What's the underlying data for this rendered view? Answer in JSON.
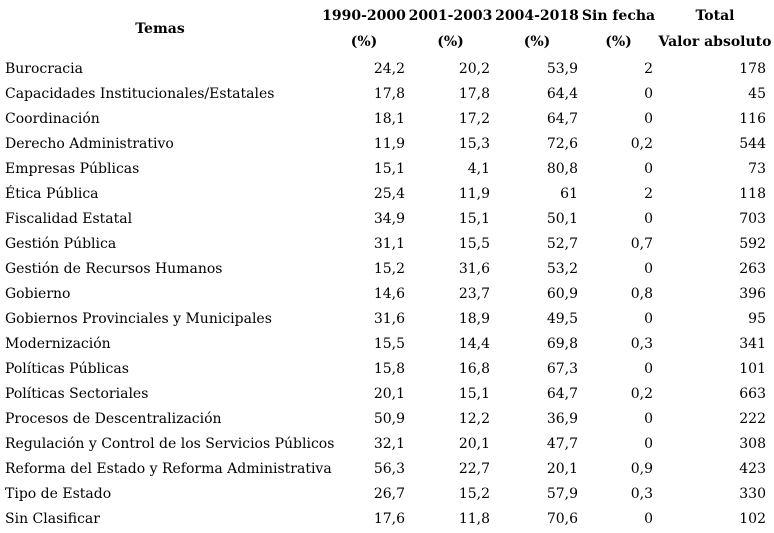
{
  "chart_data": {
    "type": "table",
    "columns": [
      {
        "label": "Temas",
        "sublabel": ""
      },
      {
        "label": "1990-2000",
        "sublabel": "(%)"
      },
      {
        "label": "2001-2003",
        "sublabel": "(%)"
      },
      {
        "label": "2004-2018",
        "sublabel": "(%)"
      },
      {
        "label": "Sin fecha",
        "sublabel": "(%)"
      },
      {
        "label": "Total",
        "sublabel": "Valor absoluto"
      }
    ],
    "rows": [
      [
        "Burocracia",
        "24,2",
        "20,2",
        "53,9",
        "2",
        "178"
      ],
      [
        "Capacidades Institucionales/Estatales",
        "17,8",
        "17,8",
        "64,4",
        "0",
        "45"
      ],
      [
        "Coordinación",
        "18,1",
        "17,2",
        "64,7",
        "0",
        "116"
      ],
      [
        "Derecho Administrativo",
        "11,9",
        "15,3",
        "72,6",
        "0,2",
        "544"
      ],
      [
        "Empresas Públicas",
        "15,1",
        "4,1",
        "80,8",
        "0",
        "73"
      ],
      [
        "Ética Pública",
        "25,4",
        "11,9",
        "61",
        "2",
        "118"
      ],
      [
        "Fiscalidad Estatal",
        "34,9",
        "15,1",
        "50,1",
        "0",
        "703"
      ],
      [
        "Gestión Pública",
        "31,1",
        "15,5",
        "52,7",
        "0,7",
        "592"
      ],
      [
        "Gestión de Recursos Humanos",
        "15,2",
        "31,6",
        "53,2",
        "0",
        "263"
      ],
      [
        "Gobierno",
        "14,6",
        "23,7",
        "60,9",
        "0,8",
        "396"
      ],
      [
        "Gobiernos Provinciales y Municipales",
        "31,6",
        "18,9",
        "49,5",
        "0",
        "95"
      ],
      [
        "Modernización",
        "15,5",
        "14,4",
        "69,8",
        "0,3",
        "341"
      ],
      [
        "Políticas Públicas",
        "15,8",
        "16,8",
        "67,3",
        "0",
        "101"
      ],
      [
        "Políticas Sectoriales",
        "20,1",
        "15,1",
        "64,7",
        "0,2",
        "663"
      ],
      [
        "Procesos de Descentralización",
        "50,9",
        "12,2",
        "36,9",
        "0",
        "222"
      ],
      [
        "Regulación y Control de los Servicios Públicos",
        "32,1",
        "20,1",
        "47,7",
        "0",
        "308"
      ],
      [
        "Reforma del Estado y Reforma Administrativa",
        "56,3",
        "22,7",
        "20,1",
        "0,9",
        "423"
      ],
      [
        "Tipo de Estado",
        "26,7",
        "15,2",
        "57,9",
        "0,3",
        "330"
      ],
      [
        "Sin Clasificar",
        "17,6",
        "11,8",
        "70,6",
        "0",
        "102"
      ]
    ],
    "layout": {
      "text_color": "#000000",
      "background_color": "#ffffff",
      "numeric_alignment": "right",
      "grid": "none"
    }
  }
}
